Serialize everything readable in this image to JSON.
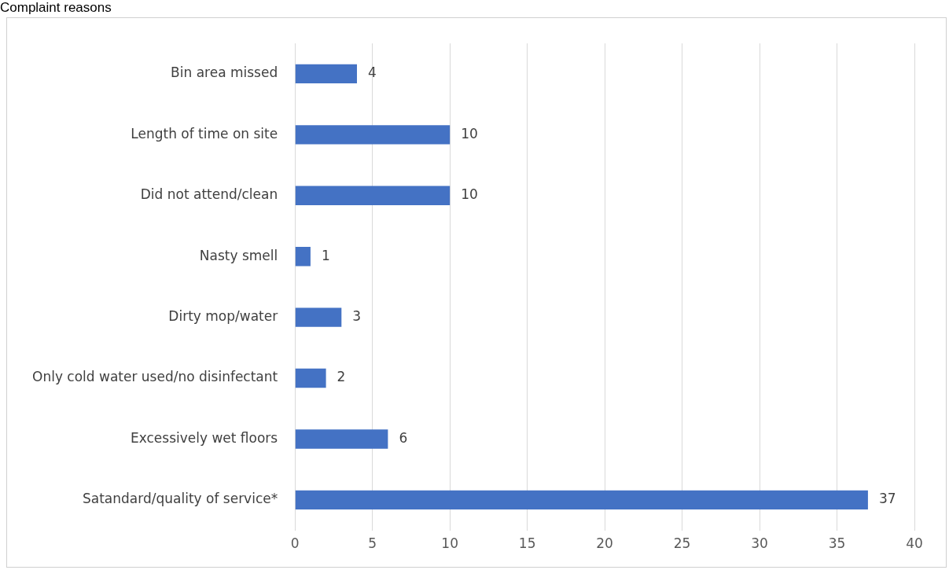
{
  "chart_data": {
    "type": "bar",
    "title": "Complaint reasons",
    "orientation": "horizontal",
    "categories": [
      "Bin area missed",
      "Length of time on site",
      "Did not attend/clean",
      "Nasty smell",
      "Dirty mop/water",
      "Only cold water used/no disinfectant",
      "Excessively wet floors",
      "Satandard/quality of service*"
    ],
    "values": [
      4,
      10,
      10,
      1,
      3,
      2,
      6,
      37
    ],
    "color": "#4472c4",
    "xlim": [
      0,
      40
    ],
    "xticks": [
      0,
      5,
      10,
      15,
      20,
      25,
      30,
      35,
      40
    ],
    "grid": "x",
    "data_labels": true
  }
}
